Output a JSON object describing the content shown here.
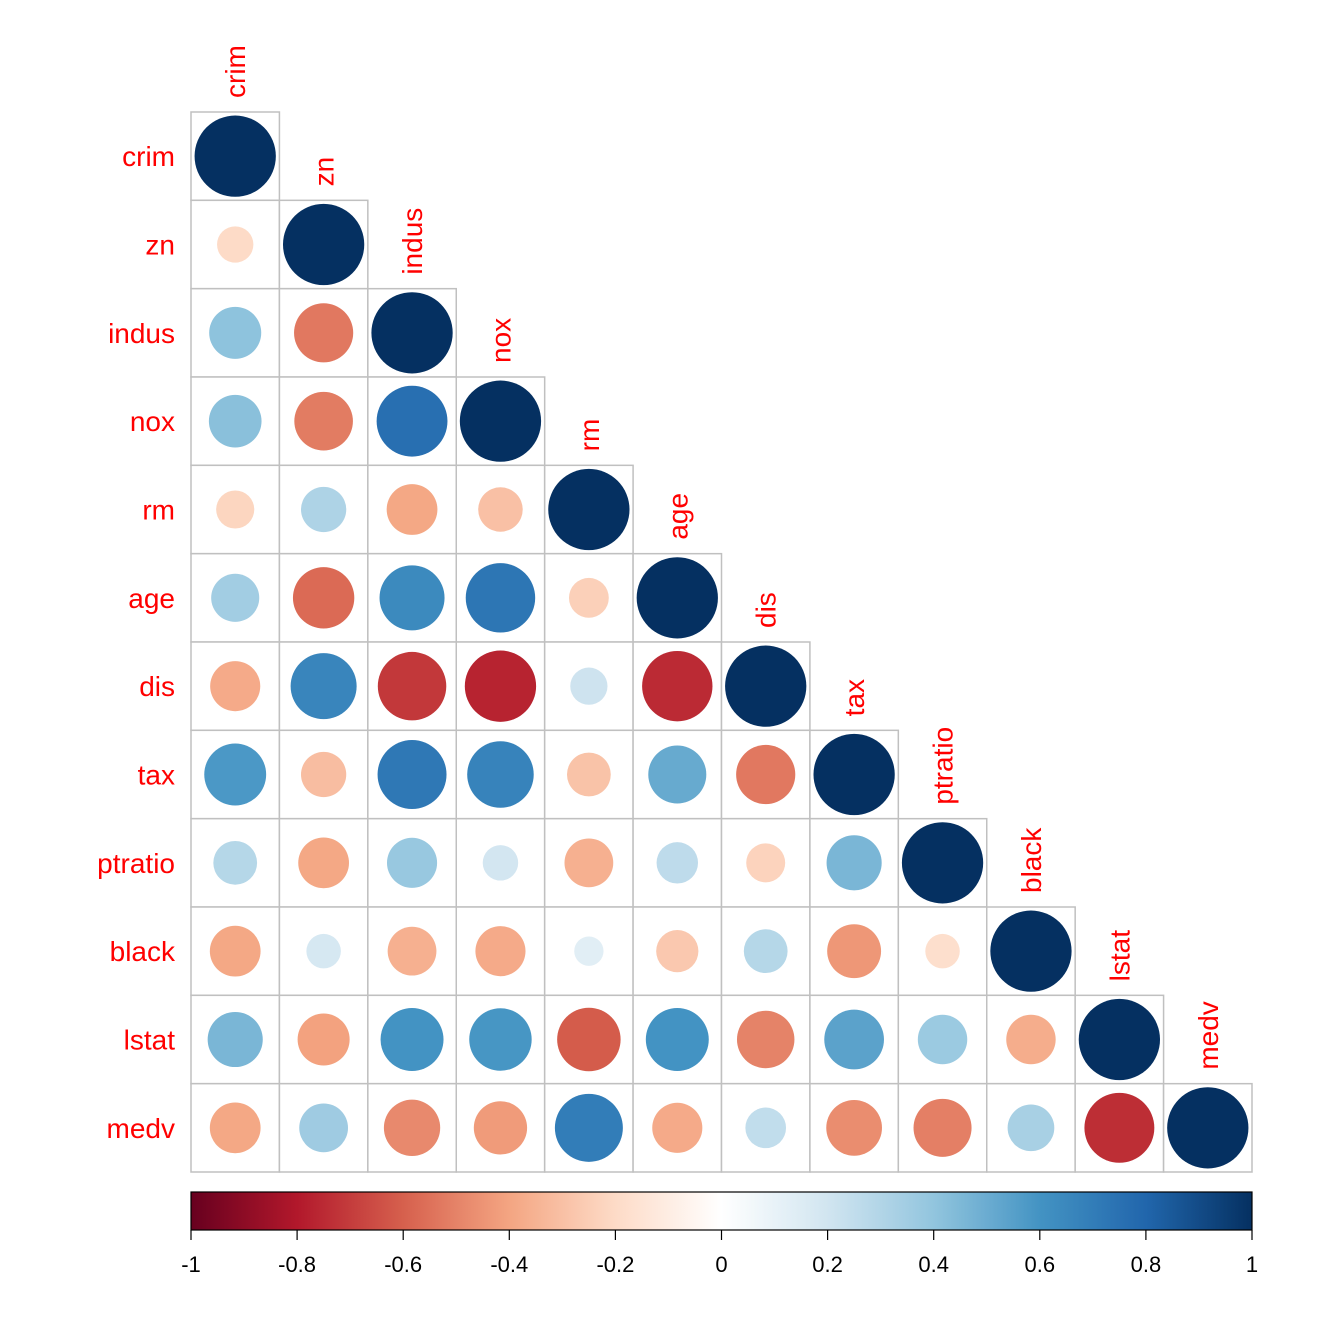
{
  "chart_data": {
    "type": "heatmap",
    "style": "corrplot-circle-lower",
    "title": "",
    "variables": [
      "crim",
      "zn",
      "indus",
      "nox",
      "rm",
      "age",
      "dis",
      "tax",
      "ptratio",
      "black",
      "lstat",
      "medv"
    ],
    "matrix": [
      [
        1.0,
        -0.2,
        0.41,
        0.42,
        -0.22,
        0.35,
        -0.38,
        0.58,
        0.29,
        -0.39,
        0.46,
        -0.39
      ],
      [
        -0.2,
        1.0,
        -0.53,
        -0.52,
        0.31,
        -0.57,
        0.66,
        -0.31,
        -0.39,
        0.18,
        -0.41,
        0.36
      ],
      [
        0.41,
        -0.53,
        1.0,
        0.76,
        -0.39,
        0.64,
        -0.71,
        0.72,
        0.38,
        -0.36,
        0.6,
        -0.48
      ],
      [
        0.42,
        -0.52,
        0.76,
        1.0,
        -0.3,
        0.73,
        -0.77,
        0.67,
        0.19,
        -0.38,
        0.59,
        -0.43
      ],
      [
        -0.22,
        0.31,
        -0.39,
        -0.3,
        1.0,
        -0.24,
        0.21,
        -0.29,
        -0.36,
        0.13,
        -0.61,
        0.7
      ],
      [
        0.35,
        -0.57,
        0.64,
        0.73,
        -0.24,
        1.0,
        -0.75,
        0.51,
        0.26,
        -0.27,
        0.6,
        -0.38
      ],
      [
        -0.38,
        0.66,
        -0.71,
        -0.77,
        0.21,
        -0.75,
        1.0,
        -0.53,
        -0.23,
        0.29,
        -0.5,
        0.25
      ],
      [
        0.58,
        -0.31,
        0.72,
        0.67,
        -0.29,
        0.51,
        -0.53,
        1.0,
        0.46,
        -0.44,
        0.54,
        -0.47
      ],
      [
        0.29,
        -0.39,
        0.38,
        0.19,
        -0.36,
        0.26,
        -0.23,
        0.46,
        1.0,
        -0.18,
        0.37,
        -0.51
      ],
      [
        -0.39,
        0.18,
        -0.36,
        -0.38,
        0.13,
        -0.27,
        0.29,
        -0.44,
        -0.18,
        1.0,
        -0.37,
        0.33
      ],
      [
        0.46,
        -0.41,
        0.6,
        0.59,
        -0.61,
        0.6,
        -0.5,
        0.54,
        0.37,
        -0.37,
        1.0,
        -0.74
      ],
      [
        -0.39,
        0.36,
        -0.48,
        -0.43,
        0.7,
        -0.38,
        0.25,
        -0.47,
        -0.51,
        0.33,
        -0.74,
        1.0
      ]
    ],
    "color_scale": {
      "range": [
        -1,
        1
      ],
      "ticks": [
        "-1",
        "-0.8",
        "-0.6",
        "-0.4",
        "-0.2",
        "0",
        "0.2",
        "0.4",
        "0.6",
        "0.8",
        "1"
      ],
      "colors": [
        "#67001F",
        "#B2182B",
        "#D6604D",
        "#F4A582",
        "#FDDBC7",
        "#FFFFFF",
        "#D1E5F0",
        "#92C5DE",
        "#4393C3",
        "#2166AC",
        "#053061"
      ]
    },
    "label_color": "#FF0000",
    "grid_color": "#C0C0C0",
    "legend": "bottom"
  }
}
